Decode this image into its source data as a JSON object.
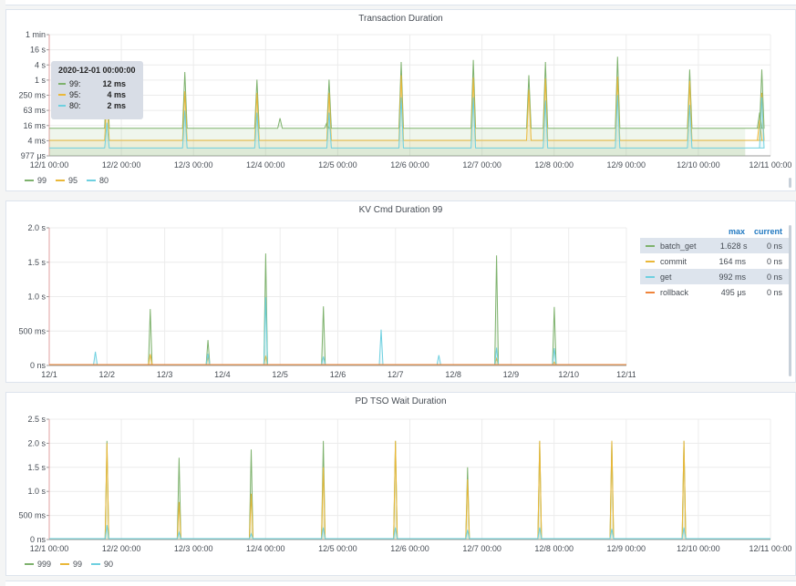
{
  "colors": {
    "green": "#7eb26d",
    "yellow": "#eab839",
    "cyan": "#6ed0e0",
    "orange": "#ef843c",
    "link": "#1f78c1",
    "grid": "#ececec"
  },
  "panels": [
    {
      "title": "Transaction Duration",
      "tooltip": {
        "time": "2020-12-01 00:00:00",
        "rows": [
          {
            "label": "99:",
            "value": "12 ms",
            "color": "#7eb26d"
          },
          {
            "label": "95:",
            "value": "4 ms",
            "color": "#eab839"
          },
          {
            "label": "80:",
            "value": "2 ms",
            "color": "#6ed0e0"
          }
        ]
      },
      "legend": [
        {
          "name": "99",
          "color": "#7eb26d"
        },
        {
          "name": "95",
          "color": "#eab839"
        },
        {
          "name": "80",
          "color": "#6ed0e0"
        }
      ]
    },
    {
      "title": "KV Cmd Duration 99",
      "legend_table": {
        "headers": [
          "max",
          "current"
        ],
        "rows": [
          {
            "name": "batch_get",
            "color": "#7eb26d",
            "max": "1.628 s",
            "current": "0 ns",
            "highlight": true
          },
          {
            "name": "commit",
            "color": "#eab839",
            "max": "164 ms",
            "current": "0 ns",
            "highlight": false
          },
          {
            "name": "get",
            "color": "#6ed0e0",
            "max": "992 ms",
            "current": "0 ns",
            "highlight": true
          },
          {
            "name": "rollback",
            "color": "#ef843c",
            "max": "495 μs",
            "current": "0 ns",
            "highlight": false
          }
        ]
      }
    },
    {
      "title": "PD TSO Wait Duration",
      "legend": [
        {
          "name": "999",
          "color": "#7eb26d"
        },
        {
          "name": "99",
          "color": "#eab839"
        },
        {
          "name": "90",
          "color": "#6ed0e0"
        }
      ]
    }
  ],
  "chart_data": [
    {
      "type": "area",
      "title": "Transaction Duration",
      "y_scale": "log",
      "y_ticks": [
        "1 min",
        "16 s",
        "4 s",
        "1 s",
        "250 ms",
        "63 ms",
        "16 ms",
        "4 ms",
        "977 μs"
      ],
      "x_ticks": [
        "12/1 00:00",
        "12/2 00:00",
        "12/3 00:00",
        "12/4 00:00",
        "12/5 00:00",
        "12/6 00:00",
        "12/7 00:00",
        "12/8 00:00",
        "12/9 00:00",
        "12/10 00:00",
        "12/11 00:00"
      ],
      "x_range_days": [
        0,
        10
      ],
      "series": [
        {
          "name": "99",
          "color": "#7eb26d",
          "baseline_ms": 12,
          "spikes": [
            [
              0.8,
              5000
            ],
            [
              1.88,
              2000
            ],
            [
              2.88,
              1000
            ],
            [
              3.2,
              30
            ],
            [
              3.85,
              20
            ],
            [
              3.88,
              1000
            ],
            [
              4.88,
              5000
            ],
            [
              5.88,
              6000
            ],
            [
              6.65,
              1500
            ],
            [
              6.88,
              5000
            ],
            [
              7.88,
              8000
            ],
            [
              8.88,
              2500
            ],
            [
              9.88,
              2500
            ],
            [
              9.85,
              50
            ]
          ]
        },
        {
          "name": "95",
          "color": "#eab839",
          "baseline_ms": 4,
          "spikes": [
            [
              0.8,
              300
            ],
            [
              1.88,
              350
            ],
            [
              2.88,
              300
            ],
            [
              3.88,
              300
            ],
            [
              4.88,
              1500
            ],
            [
              5.88,
              1200
            ],
            [
              6.65,
              400
            ],
            [
              6.88,
              1100
            ],
            [
              7.88,
              1300
            ],
            [
              8.88,
              900
            ],
            [
              9.88,
              300
            ],
            [
              9.85,
              25
            ]
          ]
        },
        {
          "name": "80",
          "color": "#6ed0e0",
          "baseline_ms": 2,
          "spikes": [
            [
              0.8,
              20
            ],
            [
              1.88,
              60
            ],
            [
              2.88,
              50
            ],
            [
              3.88,
              50
            ],
            [
              4.88,
              200
            ],
            [
              5.88,
              200
            ],
            [
              6.88,
              150
            ],
            [
              7.88,
              250
            ],
            [
              8.88,
              100
            ],
            [
              9.88,
              200
            ]
          ]
        }
      ]
    },
    {
      "type": "line",
      "title": "KV Cmd Duration 99",
      "y_ticks": [
        "2.0 s",
        "1.5 s",
        "1.0 s",
        "500 ms",
        "0 ns"
      ],
      "x_ticks": [
        "12/1",
        "12/2",
        "12/3",
        "12/4",
        "12/5",
        "12/6",
        "12/7",
        "12/8",
        "12/9",
        "12/10",
        "12/11"
      ],
      "y_range_s": [
        0,
        2.0
      ],
      "x_range_days": [
        0,
        10
      ],
      "series": [
        {
          "name": "batch_get",
          "color": "#7eb26d",
          "spikes": [
            [
              1.75,
              0.82
            ],
            [
              2.75,
              0.37
            ],
            [
              3.75,
              1.628
            ],
            [
              4.75,
              0.86
            ],
            [
              7.75,
              1.6
            ],
            [
              8.75,
              0.85
            ]
          ]
        },
        {
          "name": "commit",
          "color": "#eab839",
          "spikes": [
            [
              1.75,
              0.164
            ],
            [
              2.75,
              0.12
            ],
            [
              3.75,
              0.14
            ],
            [
              7.75,
              0.1
            ],
            [
              8.75,
              0.05
            ]
          ]
        },
        {
          "name": "get",
          "color": "#6ed0e0",
          "spikes": [
            [
              0.8,
              0.2
            ],
            [
              2.75,
              0.17
            ],
            [
              3.75,
              0.992
            ],
            [
              4.75,
              0.13
            ],
            [
              5.75,
              0.52
            ],
            [
              6.75,
              0.15
            ],
            [
              7.75,
              0.26
            ],
            [
              8.75,
              0.25
            ]
          ]
        },
        {
          "name": "rollback",
          "color": "#ef843c",
          "spikes": []
        }
      ]
    },
    {
      "type": "line",
      "title": "PD TSO Wait Duration",
      "y_ticks": [
        "2.5 s",
        "2.0 s",
        "1.5 s",
        "1.0 s",
        "500 ms",
        "0 ns"
      ],
      "x_ticks": [
        "12/1 00:00",
        "12/2 00:00",
        "12/3 00:00",
        "12/4 00:00",
        "12/5 00:00",
        "12/6 00:00",
        "12/7 00:00",
        "12/8 00:00",
        "12/9 00:00",
        "12/10 00:00",
        "12/11 00:00"
      ],
      "y_range_s": [
        0,
        2.5
      ],
      "x_range_days": [
        0,
        10
      ],
      "series": [
        {
          "name": "999",
          "color": "#7eb26d",
          "spikes": [
            [
              0.8,
              2.05
            ],
            [
              1.8,
              1.7
            ],
            [
              2.8,
              1.87
            ],
            [
              3.8,
              2.05
            ],
            [
              4.8,
              2.05
            ],
            [
              5.8,
              1.5
            ],
            [
              6.8,
              2.05
            ],
            [
              7.8,
              2.05
            ],
            [
              8.8,
              2.05
            ]
          ]
        },
        {
          "name": "99",
          "color": "#eab839",
          "spikes": [
            [
              0.8,
              2.0
            ],
            [
              1.8,
              0.78
            ],
            [
              2.8,
              0.95
            ],
            [
              3.8,
              1.5
            ],
            [
              4.8,
              2.05
            ],
            [
              5.8,
              1.25
            ],
            [
              6.8,
              2.05
            ],
            [
              7.8,
              2.05
            ],
            [
              8.8,
              2.05
            ]
          ]
        },
        {
          "name": "90",
          "color": "#6ed0e0",
          "spikes": [
            [
              0.8,
              0.3
            ],
            [
              1.8,
              0.15
            ],
            [
              2.8,
              0.12
            ],
            [
              3.8,
              0.25
            ],
            [
              4.8,
              0.25
            ],
            [
              5.8,
              0.2
            ],
            [
              6.8,
              0.25
            ],
            [
              7.8,
              0.22
            ],
            [
              8.8,
              0.25
            ]
          ]
        }
      ]
    }
  ]
}
